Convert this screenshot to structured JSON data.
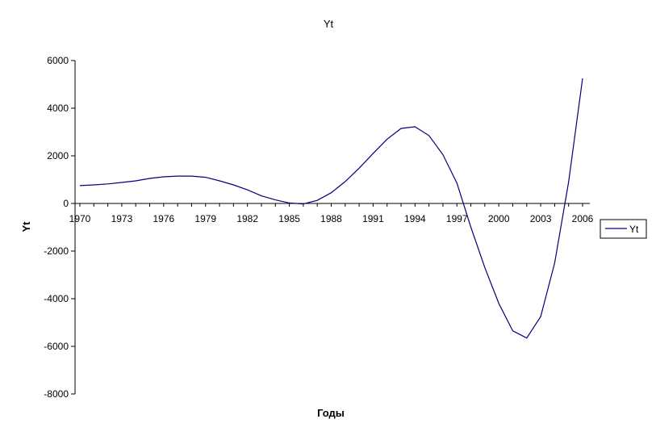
{
  "chart_data": {
    "type": "line",
    "title": "Yt",
    "xlabel": "Годы",
    "ylabel": "Yt",
    "ylim": [
      -8000,
      6000
    ],
    "yticks": [
      6000,
      4000,
      2000,
      0,
      -2000,
      -4000,
      -6000,
      -8000
    ],
    "xticks": [
      "1970",
      "1973",
      "1976",
      "1979",
      "1982",
      "1985",
      "1988",
      "1991",
      "1994",
      "1997",
      "2000",
      "2003",
      "2006"
    ],
    "grid": false,
    "legend": "right",
    "line_color": "#000080",
    "series": [
      {
        "name": "Yt",
        "x": [
          1970,
          1971,
          1972,
          1973,
          1974,
          1975,
          1976,
          1977,
          1978,
          1979,
          1980,
          1981,
          1982,
          1983,
          1984,
          1985,
          1986,
          1987,
          1988,
          1989,
          1990,
          1991,
          1992,
          1993,
          1994,
          1995,
          1996,
          1997,
          1998,
          1999,
          2000,
          2001,
          2002,
          2003,
          2004,
          2005,
          2006
        ],
        "values": [
          750,
          780,
          820,
          880,
          950,
          1050,
          1120,
          1150,
          1150,
          1100,
          950,
          780,
          570,
          320,
          150,
          20,
          -20,
          130,
          450,
          920,
          1480,
          2100,
          2700,
          3150,
          3220,
          2850,
          2050,
          850,
          -1000,
          -2700,
          -4200,
          -5350,
          -5650,
          -4750,
          -2500,
          900,
          5250
        ]
      }
    ]
  }
}
